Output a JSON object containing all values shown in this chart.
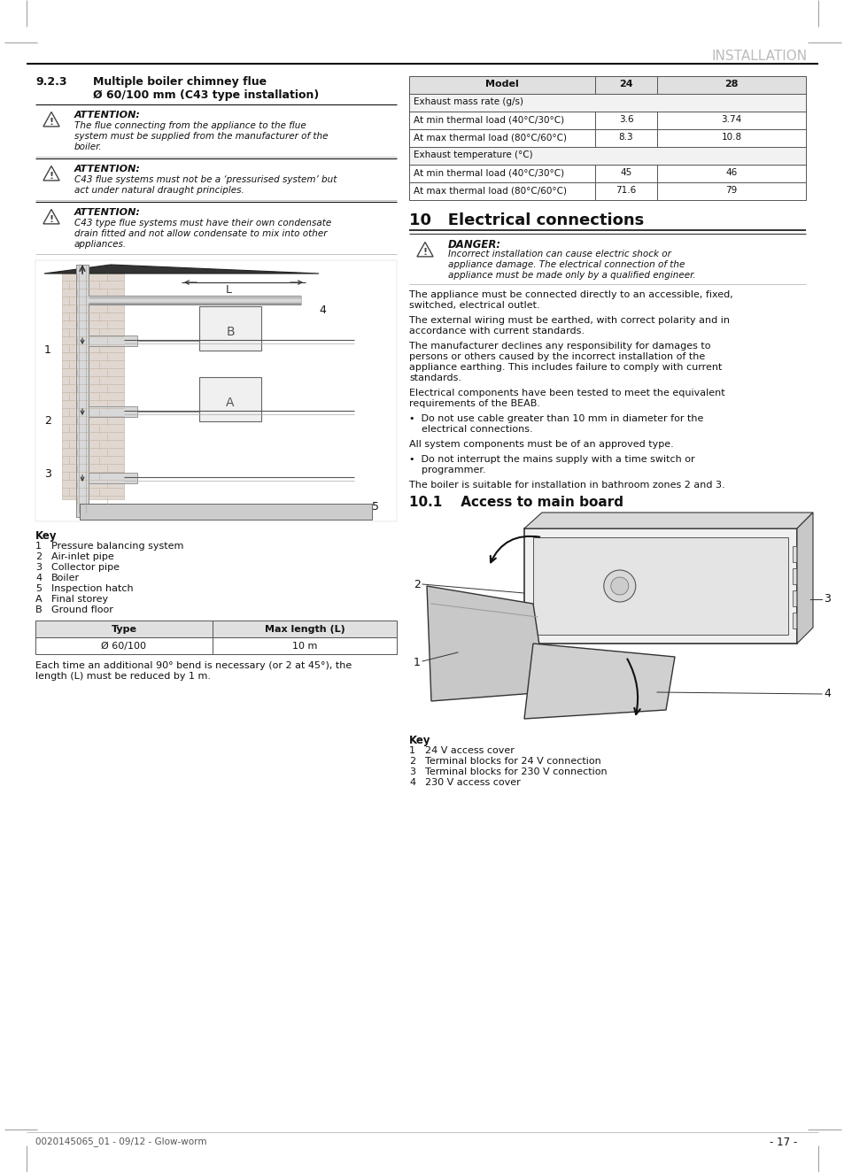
{
  "page_title": "INSTALLATION",
  "section_title": "9.2.3",
  "section_heading_line1": "Multiple boiler chimney flue",
  "section_heading_line2": "Ø 60/100 mm (C43 type installation)",
  "attention_blocks": [
    {
      "title": "ATTENTION:",
      "text": "The flue connecting from the appliance to the flue\nsystem must be supplied from the manufacturer of the\nboiler."
    },
    {
      "title": "ATTENTION:",
      "text": "C43 flue systems must not be a ‘pressurised system’ but\nact under natural draught principles."
    },
    {
      "title": "ATTENTION:",
      "text": "C43 type flue systems must have their own condensate\ndrain fitted and not allow condensate to mix into other\nappliances."
    }
  ],
  "table1_headers": [
    "Model",
    "24",
    "28"
  ],
  "table1_rows": [
    [
      "Exhaust mass rate (g/s)",
      "",
      ""
    ],
    [
      "At min thermal load (40°C/30°C)",
      "3.6",
      "3.74"
    ],
    [
      "At max thermal load (80°C/60°C)",
      "8.3",
      "10.8"
    ],
    [
      "Exhaust temperature (°C)",
      "",
      ""
    ],
    [
      "At min thermal load (40°C/30°C)",
      "45",
      "46"
    ],
    [
      "At max thermal load (80°C/60°C)",
      "71.6",
      "79"
    ]
  ],
  "key_left": [
    [
      "1",
      "Pressure balancing system"
    ],
    [
      "2",
      "Air-inlet pipe"
    ],
    [
      "3",
      "Collector pipe"
    ],
    [
      "4",
      "Boiler"
    ],
    [
      "5",
      "Inspection hatch"
    ],
    [
      "A",
      "Final storey"
    ],
    [
      "B",
      "Ground floor"
    ]
  ],
  "table2_headers": [
    "Type",
    "Max length (L)"
  ],
  "table2_rows": [
    [
      "Ø 60/100",
      "10 m"
    ]
  ],
  "bottom_note_left": "Each time an additional 90° bend is necessary (or 2 at 45°), the\nlength (L) must be reduced by 1 m.",
  "section10_title": "10   Electrical connections",
  "danger_block": {
    "title": "DANGER:",
    "text": "Incorrect installation can cause electric shock or\nappliance damage. The electrical connection of the\nappliance must be made only by a qualified engineer."
  },
  "right_paragraphs": [
    "The appliance must be connected directly to an accessible, fixed,\nswitched, electrical outlet.",
    "The external wiring must be earthed, with correct polarity and in\naccordance with current standards.",
    "The manufacturer declines any responsibility for damages to\npersons or others caused by the incorrect installation of the\nappliance earthing. This includes failure to comply with current\nstandards.",
    "Electrical components have been tested to meet the equivalent\nrequirements of the BEAB.",
    "•  Do not use cable greater than 10 mm in diameter for the\n    electrical connections.",
    "All system components must be of an approved type.",
    "•  Do not interrupt the mains supply with a time switch or\n    programmer.",
    "The boiler is suitable for installation in bathroom zones 2 and 3."
  ],
  "section101_title": "10.1    Access to main board",
  "key_right": [
    [
      "1",
      "24 V access cover"
    ],
    [
      "2",
      "Terminal blocks for 24 V connection"
    ],
    [
      "3",
      "Terminal blocks for 230 V connection"
    ],
    [
      "4",
      "230 V access cover"
    ]
  ],
  "footer_left": "0020145065_01 - 09/12 - Glow-worm",
  "footer_right": "- 17 -",
  "bg_color": "#ffffff"
}
